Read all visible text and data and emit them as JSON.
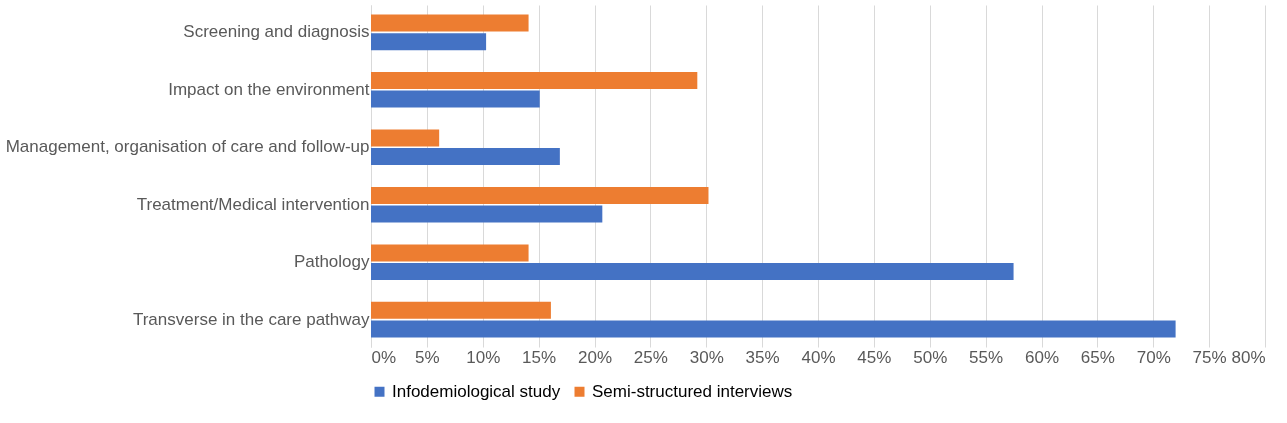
{
  "chart_data": {
    "type": "bar",
    "orientation": "horizontal",
    "categories": [
      "Screening and diagnosis",
      "Impact on the environment",
      "Management, organisation of care and follow-up",
      "Treatment/Medical intervention",
      "Pathology",
      "Transverse in the care pathway"
    ],
    "series": [
      {
        "name": "Infodemiological study",
        "color": "#4472c4",
        "values": [
          10.3,
          15.1,
          16.9,
          20.7,
          57.5,
          72.0
        ]
      },
      {
        "name": "Semi-structured interviews",
        "color": "#ed7d31",
        "values": [
          14.1,
          29.2,
          6.1,
          30.2,
          14.1,
          16.1
        ]
      }
    ],
    "xlim": [
      0,
      80
    ],
    "xticks": [
      {
        "value": 0,
        "label": "0%"
      },
      {
        "value": 5,
        "label": "5%"
      },
      {
        "value": 10,
        "label": "10%"
      },
      {
        "value": 15,
        "label": "15%"
      },
      {
        "value": 20,
        "label": "20%"
      },
      {
        "value": 25,
        "label": "25%"
      },
      {
        "value": 30,
        "label": "30%"
      },
      {
        "value": 35,
        "label": "35%"
      },
      {
        "value": 40,
        "label": "40%"
      },
      {
        "value": 45,
        "label": "45%"
      },
      {
        "value": 50,
        "label": "50%"
      },
      {
        "value": 55,
        "label": "55%"
      },
      {
        "value": 60,
        "label": "60%"
      },
      {
        "value": 65,
        "label": "65%"
      },
      {
        "value": 70,
        "label": "70%"
      },
      {
        "value": 75,
        "label": "75%"
      },
      {
        "value": 80,
        "label": "80%"
      }
    ],
    "grid": "x",
    "legend": "bottom"
  }
}
